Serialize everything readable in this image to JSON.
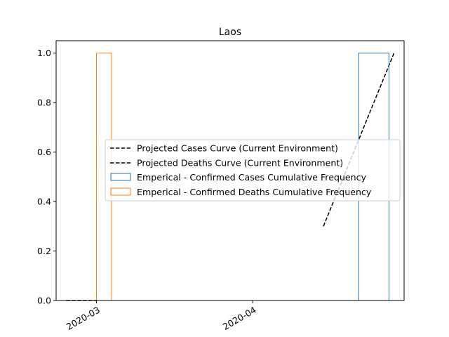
{
  "chart_data": {
    "type": "histogram-step",
    "title": "Laos",
    "xlabel": "",
    "ylabel": "",
    "x_ticks": [
      "2020-03",
      "2020-04"
    ],
    "y_ticks": [
      "0.0",
      "0.2",
      "0.4",
      "0.6",
      "0.8",
      "1.0"
    ],
    "ylim": [
      0,
      1.05
    ],
    "grid": false,
    "legend_position": "center-right",
    "series": [
      {
        "name": "Projected Cases Curve (Current Environment)",
        "kind": "line",
        "style": "dashed",
        "color": "#000000",
        "points": [
          [
            "2020-04-15",
            0.3
          ],
          [
            "2020-04-29",
            1.0
          ]
        ]
      },
      {
        "name": "Projected Deaths Curve (Current Environment)",
        "kind": "line",
        "style": "dashed",
        "color": "#000000",
        "points": [
          [
            "2020-02-24",
            0.0
          ],
          [
            "2020-03-01",
            0.0
          ]
        ]
      },
      {
        "name": "Emperical - Confirmed Cases Cumulative Frequency",
        "kind": "step",
        "color": "#1f77b4",
        "bins": [
          {
            "start": "2020-04-15",
            "end": "2020-04-22",
            "value": 0.0
          },
          {
            "start": "2020-04-22",
            "end": "2020-04-28",
            "value": 1.0
          }
        ]
      },
      {
        "name": "Emperical - Confirmed Deaths Cumulative Frequency",
        "kind": "step",
        "color": "#ff7f0e",
        "bins": [
          {
            "start": "2020-03-01",
            "end": "2020-03-04",
            "value": 1.0
          }
        ]
      }
    ]
  }
}
